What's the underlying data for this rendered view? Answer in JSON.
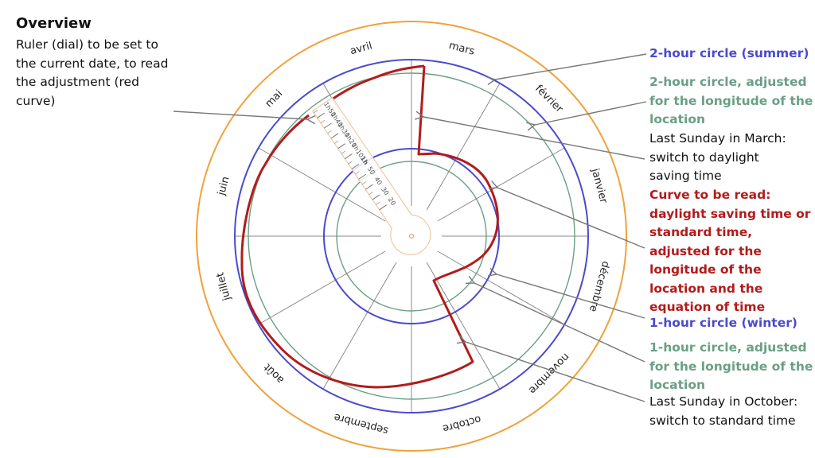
{
  "overview": {
    "title": "Overview",
    "lines": [
      "Ruler (dial) to be set to",
      "the current date, to read",
      "the adjustment (red",
      "curve)"
    ]
  },
  "annotations": [
    {
      "id": "summer",
      "color": "#4a4acf",
      "bold": true,
      "lines": [
        "2-hour circle (summer)"
      ]
    },
    {
      "id": "summer-adjusted",
      "color": "#6a9f85",
      "bold": true,
      "lines": [
        "2-hour circle, adjusted",
        "for the longitude of the",
        "location"
      ]
    },
    {
      "id": "march-switch",
      "color": "#111111",
      "bold": false,
      "lines": [
        "Last Sunday in March:",
        "switch to daylight",
        "saving time"
      ]
    },
    {
      "id": "curve",
      "color": "#b31b1b",
      "bold": true,
      "lines": [
        "Curve to be read:",
        "daylight saving time or",
        "standard time,",
        "adjusted for the",
        "longitude of the",
        "location and the",
        "equation of time"
      ]
    },
    {
      "id": "winter",
      "color": "#4a4acf",
      "bold": true,
      "lines": [
        "1-hour circle (winter)"
      ]
    },
    {
      "id": "winter-adjusted",
      "color": "#6a9f85",
      "bold": true,
      "lines": [
        "1-hour circle, adjusted",
        "for the longitude of the",
        "location"
      ]
    },
    {
      "id": "october-switch",
      "color": "#111111",
      "bold": false,
      "lines": [
        "Last Sunday in October:",
        "switch to standard time"
      ]
    }
  ],
  "dial": {
    "months": [
      "janvier",
      "février",
      "mars",
      "avril",
      "mai",
      "juin",
      "juillet",
      "août",
      "septembre",
      "octobre",
      "novembre",
      "décembre"
    ],
    "ruler_ticks": [
      "20",
      "30",
      "40",
      "50",
      "1h",
      "1h10",
      "1h20",
      "1h30",
      "1h40",
      "1h50"
    ],
    "colors": {
      "outer_ring": "#f0a23a",
      "hour_circle": "#4a4acf",
      "adjusted_circle": "#6a9f85",
      "curve": "#b31b1b",
      "spokes": "#8a8a8a",
      "ruler": "#f2c8a0"
    }
  }
}
